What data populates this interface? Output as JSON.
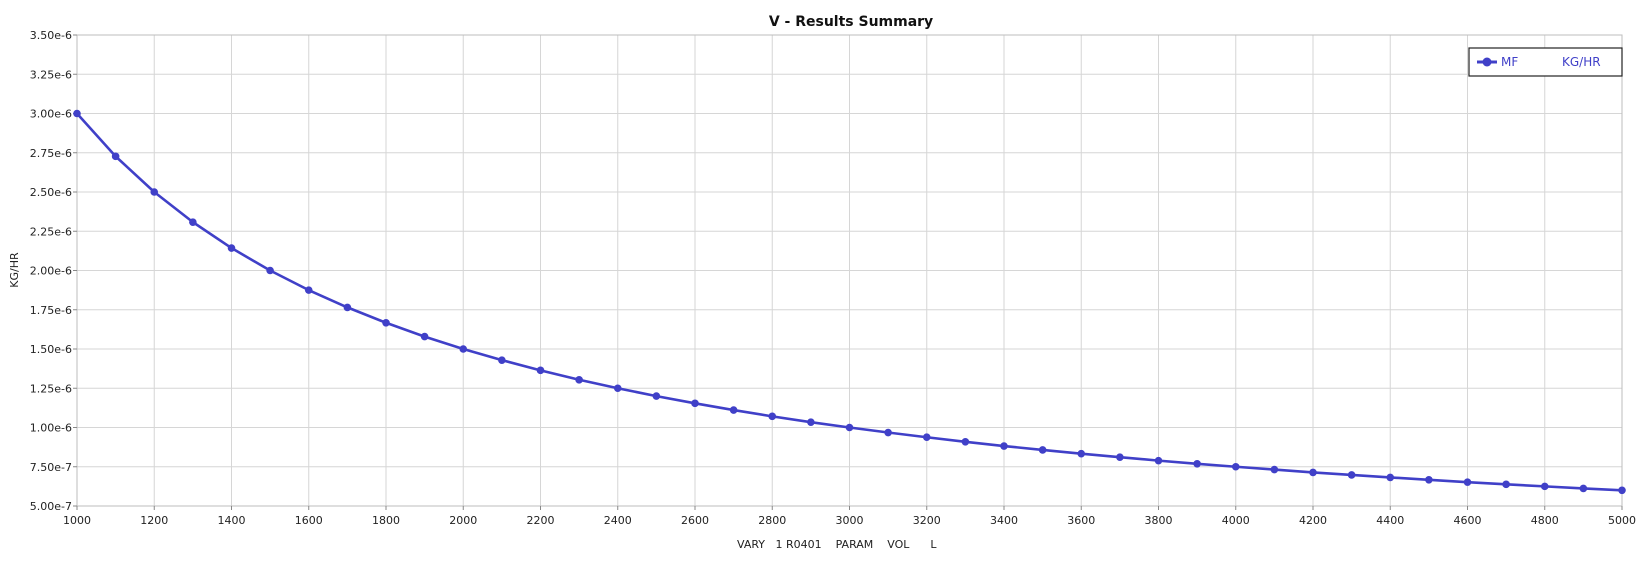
{
  "chart_data": {
    "type": "line",
    "title": "V - Results Summary",
    "xlabel": "VARY   1 R0401    PARAM    VOL      L",
    "ylabel": "KG/HR",
    "xlim": [
      1000,
      5000
    ],
    "ylim": [
      5e-07,
      3.5e-06
    ],
    "x_ticks": [
      1000,
      1200,
      1400,
      1600,
      1800,
      2000,
      2200,
      2400,
      2600,
      2800,
      3000,
      3200,
      3400,
      3600,
      3800,
      4000,
      4200,
      4400,
      4600,
      4800,
      5000
    ],
    "x_tick_labels": [
      "1000",
      "1200",
      "1400",
      "1600",
      "1800",
      "2000",
      "2200",
      "2400",
      "2600",
      "2800",
      "3000",
      "3200",
      "3400",
      "3600",
      "3800",
      "4000",
      "4200",
      "4400",
      "4600",
      "4800",
      "5000"
    ],
    "y_ticks": [
      5e-07,
      7.5e-07,
      1e-06,
      1.25e-06,
      1.5e-06,
      1.75e-06,
      2e-06,
      2.25e-06,
      2.5e-06,
      2.75e-06,
      3e-06,
      3.25e-06,
      3.5e-06
    ],
    "y_tick_labels": [
      "5.00e-7",
      "7.50e-7",
      "1.00e-6",
      "1.25e-6",
      "1.50e-6",
      "1.75e-6",
      "2.00e-6",
      "2.25e-6",
      "2.50e-6",
      "2.75e-6",
      "3.00e-6",
      "3.25e-6",
      "3.50e-6"
    ],
    "grid": true,
    "legend_position": "top-right",
    "legend": {
      "name": "MF",
      "unit": "KG/HR"
    },
    "series": [
      {
        "name": "MF",
        "color": "#4040c8",
        "x": [
          1000,
          1100,
          1200,
          1300,
          1400,
          1500,
          1600,
          1700,
          1800,
          1900,
          2000,
          2100,
          2200,
          2300,
          2400,
          2500,
          2600,
          2700,
          2800,
          2900,
          3000,
          3100,
          3200,
          3300,
          3400,
          3500,
          3600,
          3700,
          3800,
          3900,
          4000,
          4100,
          4200,
          4300,
          4400,
          4500,
          4600,
          4700,
          4800,
          4900,
          5000
        ],
        "y": [
          3e-06,
          2.727e-06,
          2.5e-06,
          2.308e-06,
          2.143e-06,
          2e-06,
          1.875e-06,
          1.765e-06,
          1.667e-06,
          1.579e-06,
          1.5e-06,
          1.429e-06,
          1.364e-06,
          1.304e-06,
          1.25e-06,
          1.2e-06,
          1.154e-06,
          1.111e-06,
          1.071e-06,
          1.034e-06,
          1e-06,
          9.68e-07,
          9.38e-07,
          9.09e-07,
          8.82e-07,
          8.57e-07,
          8.33e-07,
          8.11e-07,
          7.89e-07,
          7.69e-07,
          7.5e-07,
          7.32e-07,
          7.14e-07,
          6.98e-07,
          6.82e-07,
          6.67e-07,
          6.52e-07,
          6.38e-07,
          6.25e-07,
          6.12e-07,
          6e-07
        ]
      }
    ]
  }
}
